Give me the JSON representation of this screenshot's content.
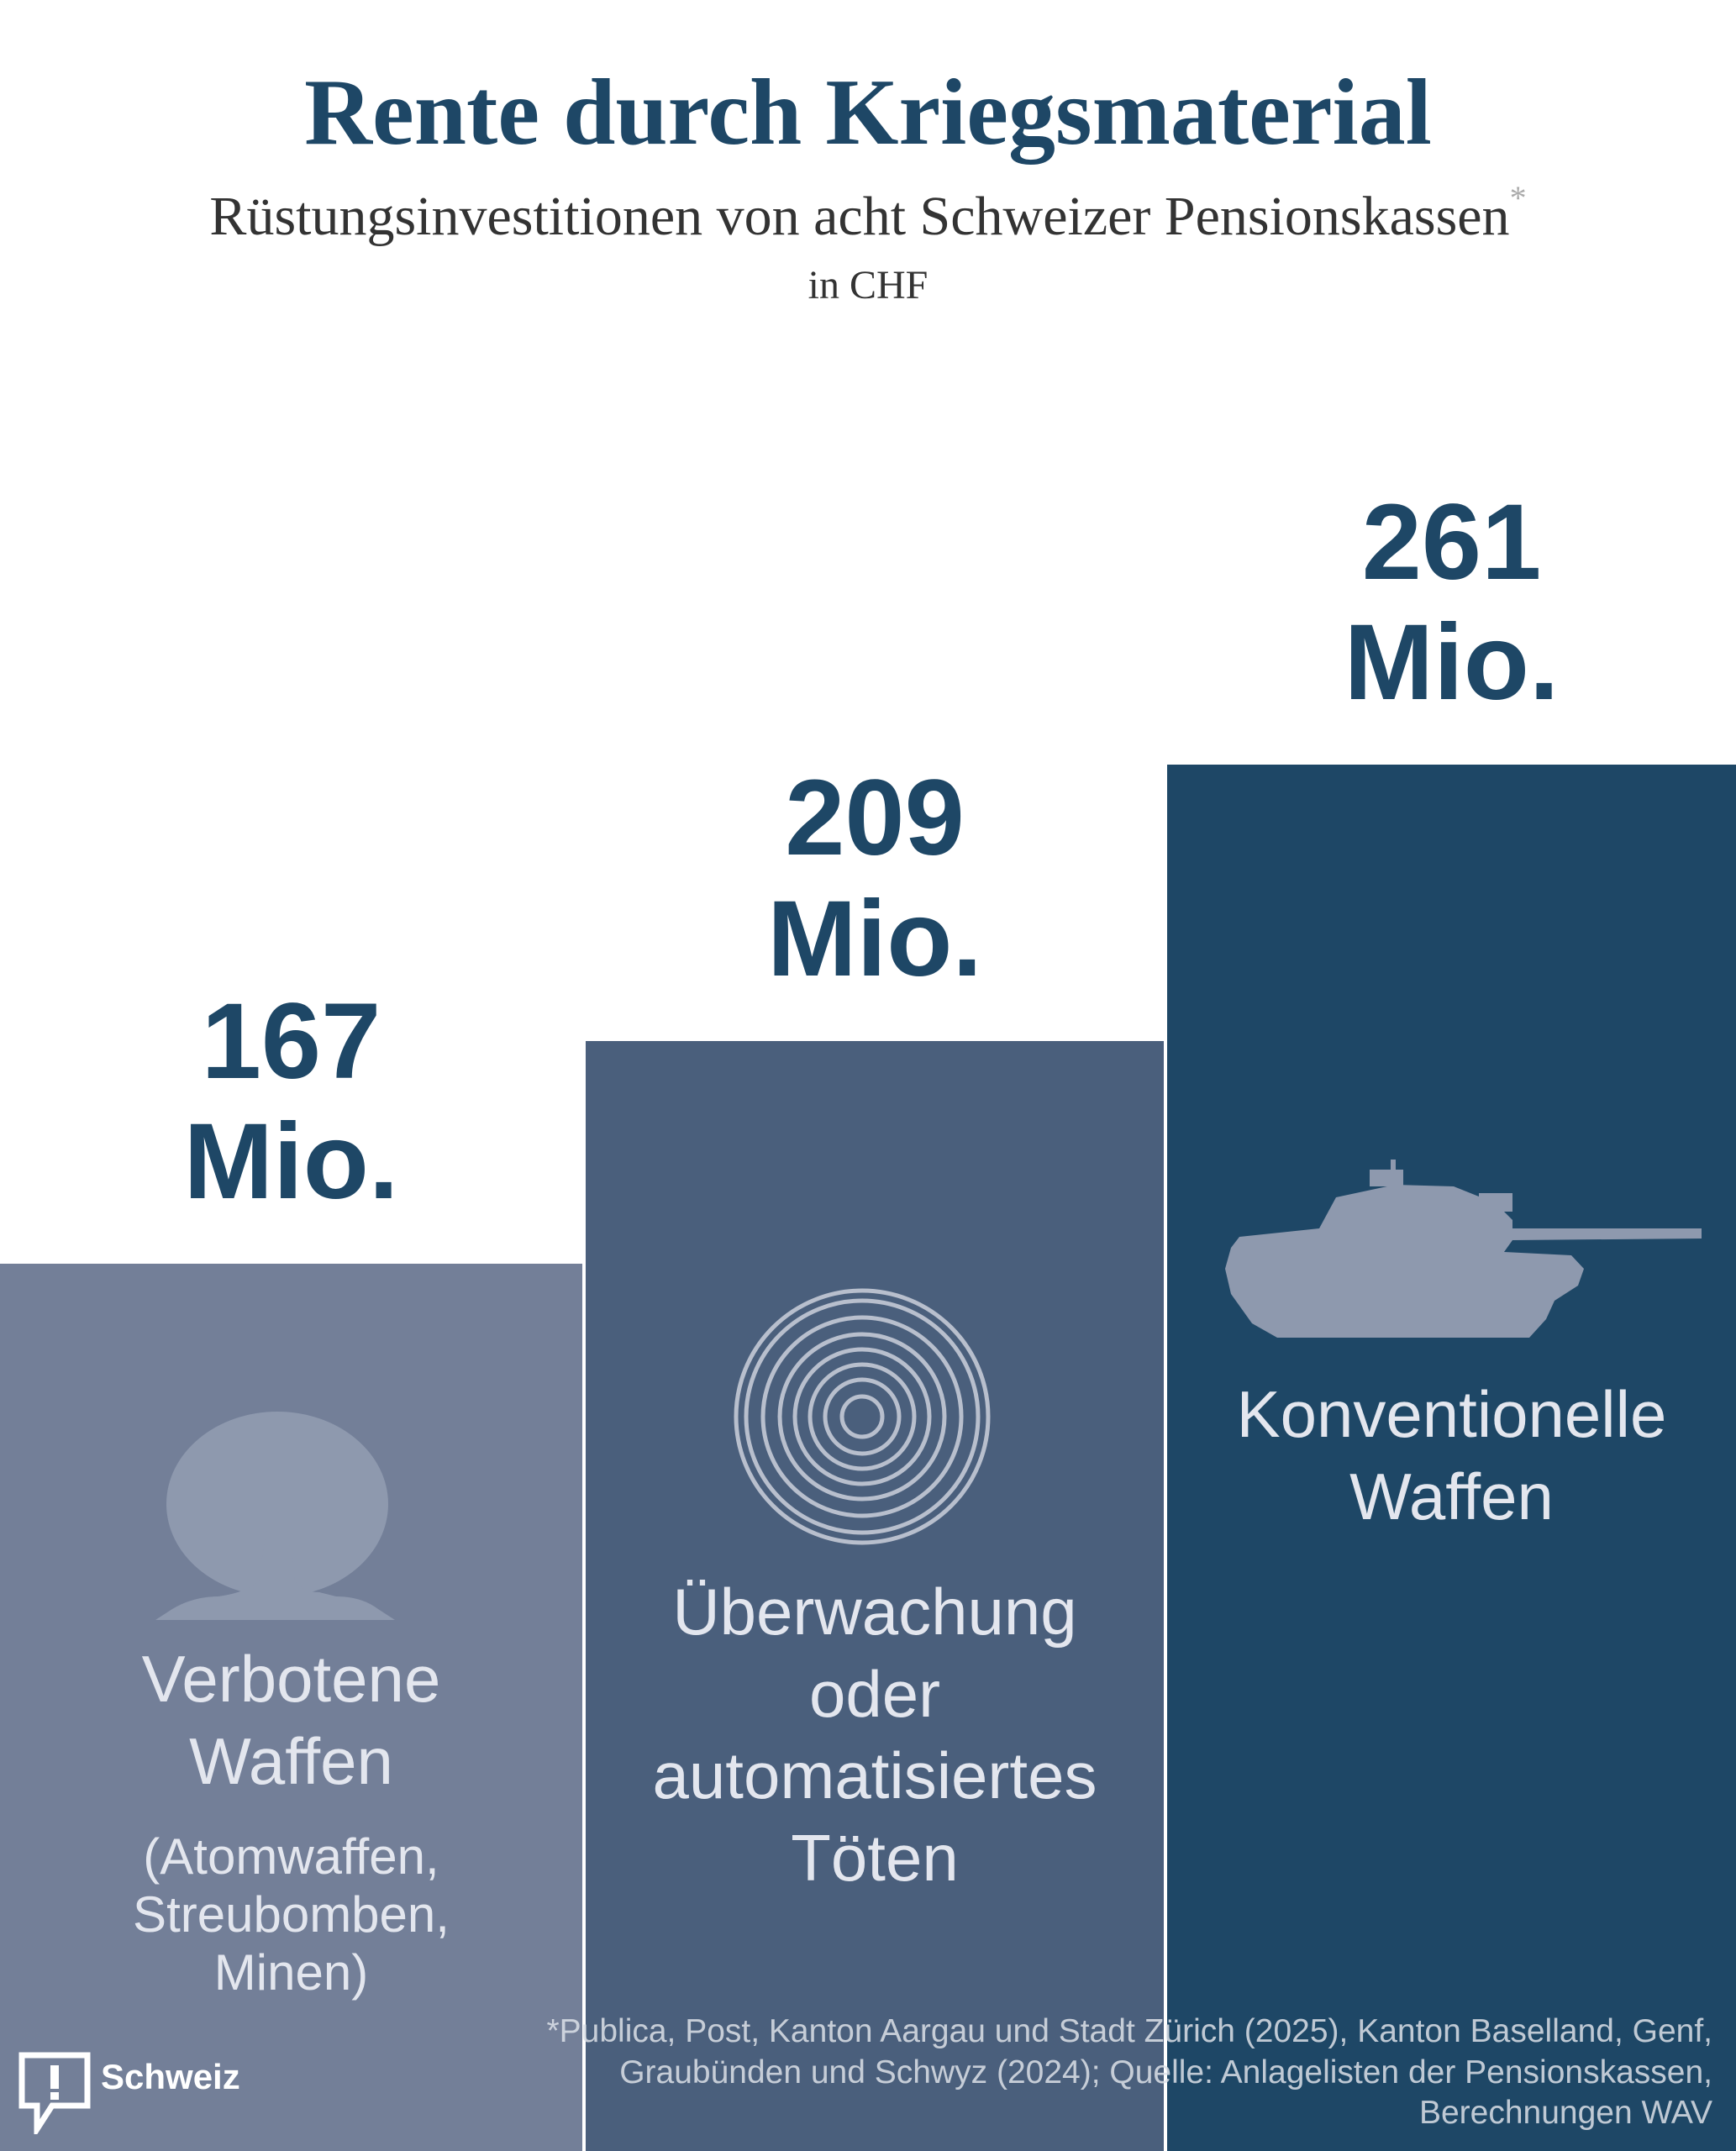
{
  "chart_data": {
    "type": "bar",
    "title": "Rente durch Kriegsmaterial",
    "subtitle": "Rüstungsinvestitionen von acht Schweizer Pensionskassen",
    "subtitle_marker": "*",
    "unit_note": "in CHF",
    "categories": [
      "Verbotene Waffen",
      "Überwachung oder automatisiertes Töten",
      "Konventionelle Waffen"
    ],
    "category_notes": [
      "(Atomwaffen, Streubomben, Minen)",
      null,
      null
    ],
    "values": [
      167,
      209,
      261
    ],
    "value_labels": [
      "167 Mio.",
      "209 Mio.",
      "261 Mio."
    ],
    "colors": [
      "#737f98",
      "#4a5f7c",
      "#1e4766"
    ],
    "ylim": [
      0,
      405
    ],
    "footnote": "*Publica, Post, Kanton Aargau und Stadt Zürich (2025), Kanton Baselland, Genf, Graubünden und Schwyz (2024); Quelle: Anlagelisten der Pensionskassen, Berechnungen WAV",
    "brand": "Schweiz"
  }
}
